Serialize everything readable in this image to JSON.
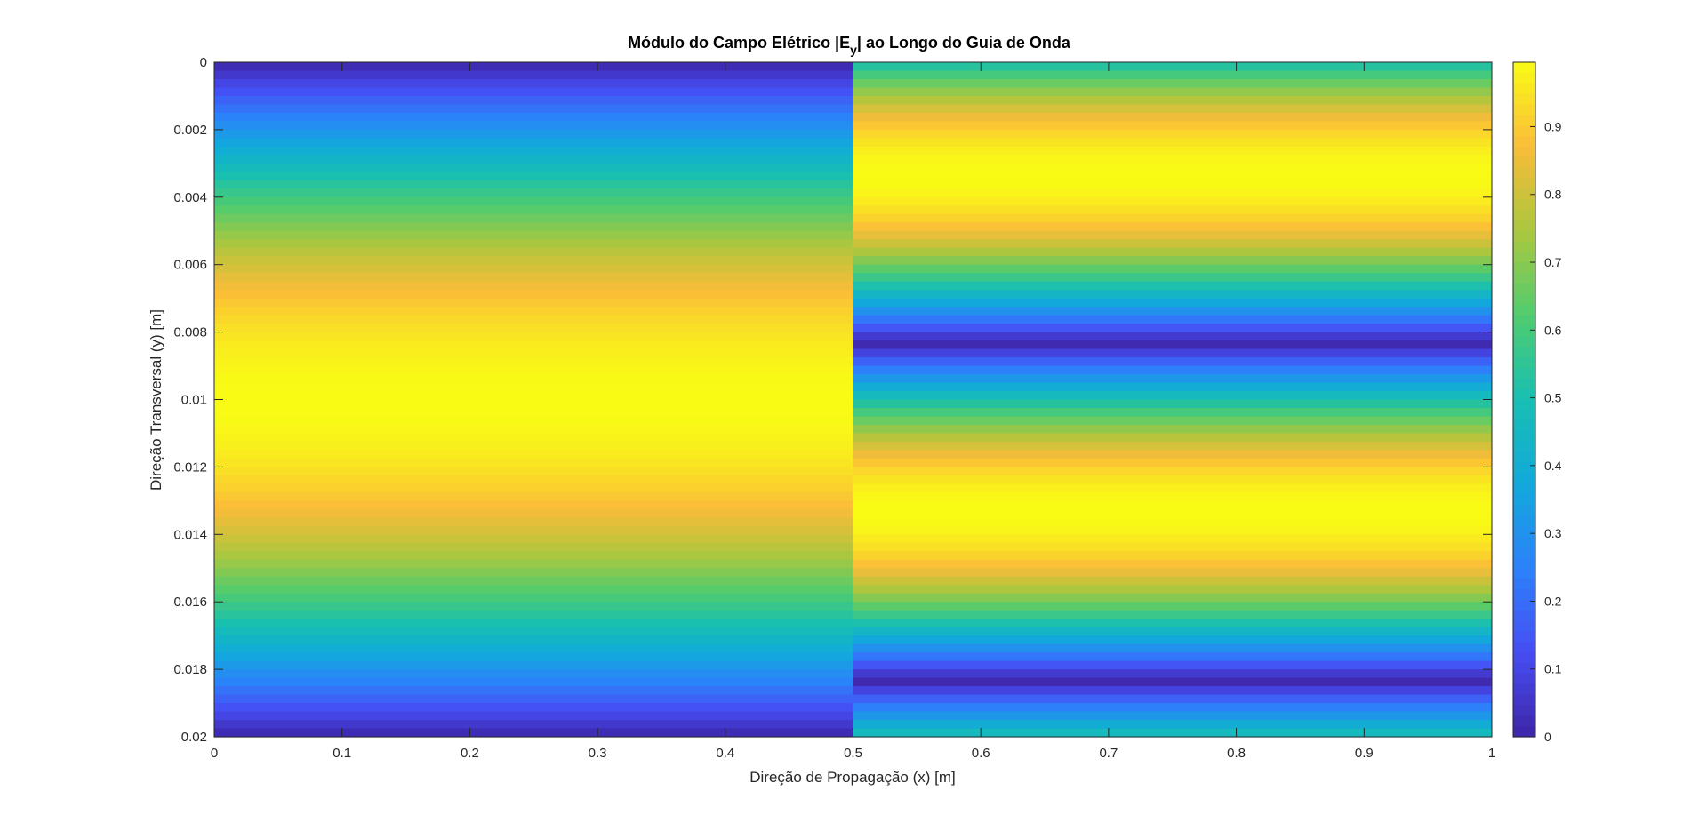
{
  "chart_data": {
    "type": "heatmap",
    "title": {
      "prefix": "Módulo do Campo Elétrico |E",
      "subscript": "y",
      "suffix": "| ao Longo do Guia de Onda"
    },
    "xlabel": "Direção de Propagação (x) [m]",
    "ylabel": "Direção Transversal (y) [m]",
    "xlim": [
      0,
      1
    ],
    "ylim": [
      0,
      0.02
    ],
    "y_direction": "reverse",
    "x_ticks": [
      "0",
      "0.1",
      "0.2",
      "0.3",
      "0.4",
      "0.5",
      "0.6",
      "0.7",
      "0.8",
      "0.9",
      "1"
    ],
    "y_ticks": [
      "0",
      "0.002",
      "0.004",
      "0.006",
      "0.008",
      "0.01",
      "0.012",
      "0.014",
      "0.016",
      "0.018",
      "0.02"
    ],
    "colormap": "parula",
    "colorbar": {
      "location": "right",
      "range": [
        0,
        0.995
      ],
      "ticks": [
        "0",
        "0.1",
        "0.2",
        "0.3",
        "0.4",
        "0.5",
        "0.6",
        "0.7",
        "0.8",
        "0.9"
      ]
    },
    "regions": [
      {
        "x_range": [
          0,
          0.5
        ],
        "profile": "sin",
        "mode": 1,
        "description_value": "|sin(pi*y/0.02)|"
      },
      {
        "x_range": [
          0.5,
          1
        ],
        "profile": "sin",
        "mode": 2,
        "phase_deg": 30,
        "description_value": "|sin(2*pi*y/0.02 + pi/6)|"
      }
    ],
    "grid": false
  }
}
